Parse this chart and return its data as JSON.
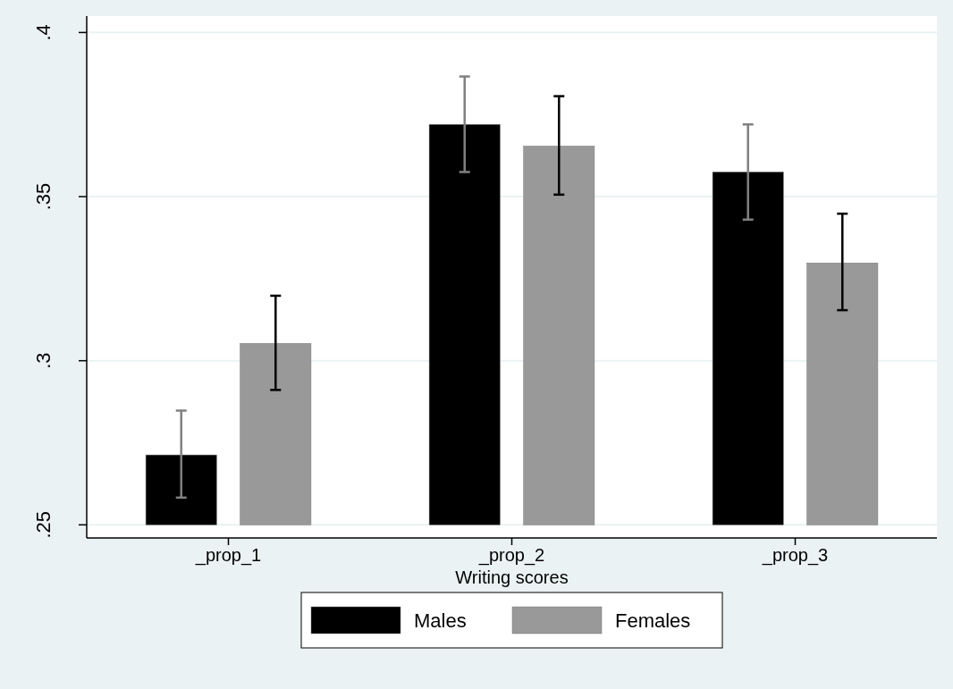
{
  "chart_data": {
    "type": "bar",
    "xlabel": "Writing scores",
    "categories": [
      "_prop_1",
      "_prop_2",
      "_prop_3"
    ],
    "series": [
      {
        "name": "Males",
        "color": "#000000",
        "base": [
          0.25,
          0.25,
          0.25
        ],
        "values": [
          0.0213,
          0.122,
          0.1075
        ],
        "errors": [
          [
            0.2583,
            0.2848
          ],
          [
            0.3575,
            0.3866
          ],
          [
            0.343,
            0.372
          ]
        ]
      },
      {
        "name": "Females",
        "color": "#999999",
        "base": [
          0.25,
          0.25,
          0.25
        ],
        "values": [
          0.0553,
          0.1154,
          0.0798
        ],
        "errors": [
          [
            0.2911,
            0.3198
          ],
          [
            0.3506,
            0.3806
          ],
          [
            0.3154,
            0.3448
          ]
        ]
      }
    ],
    "ylim": [
      0.246,
      0.405
    ],
    "yticks": [
      {
        "value": 0.25,
        "label": ".25"
      },
      {
        "value": 0.3,
        "label": ".3"
      },
      {
        "value": 0.35,
        "label": ".35"
      },
      {
        "value": 0.4,
        "label": ".4"
      }
    ],
    "grid": "y",
    "legend": "bottom"
  }
}
